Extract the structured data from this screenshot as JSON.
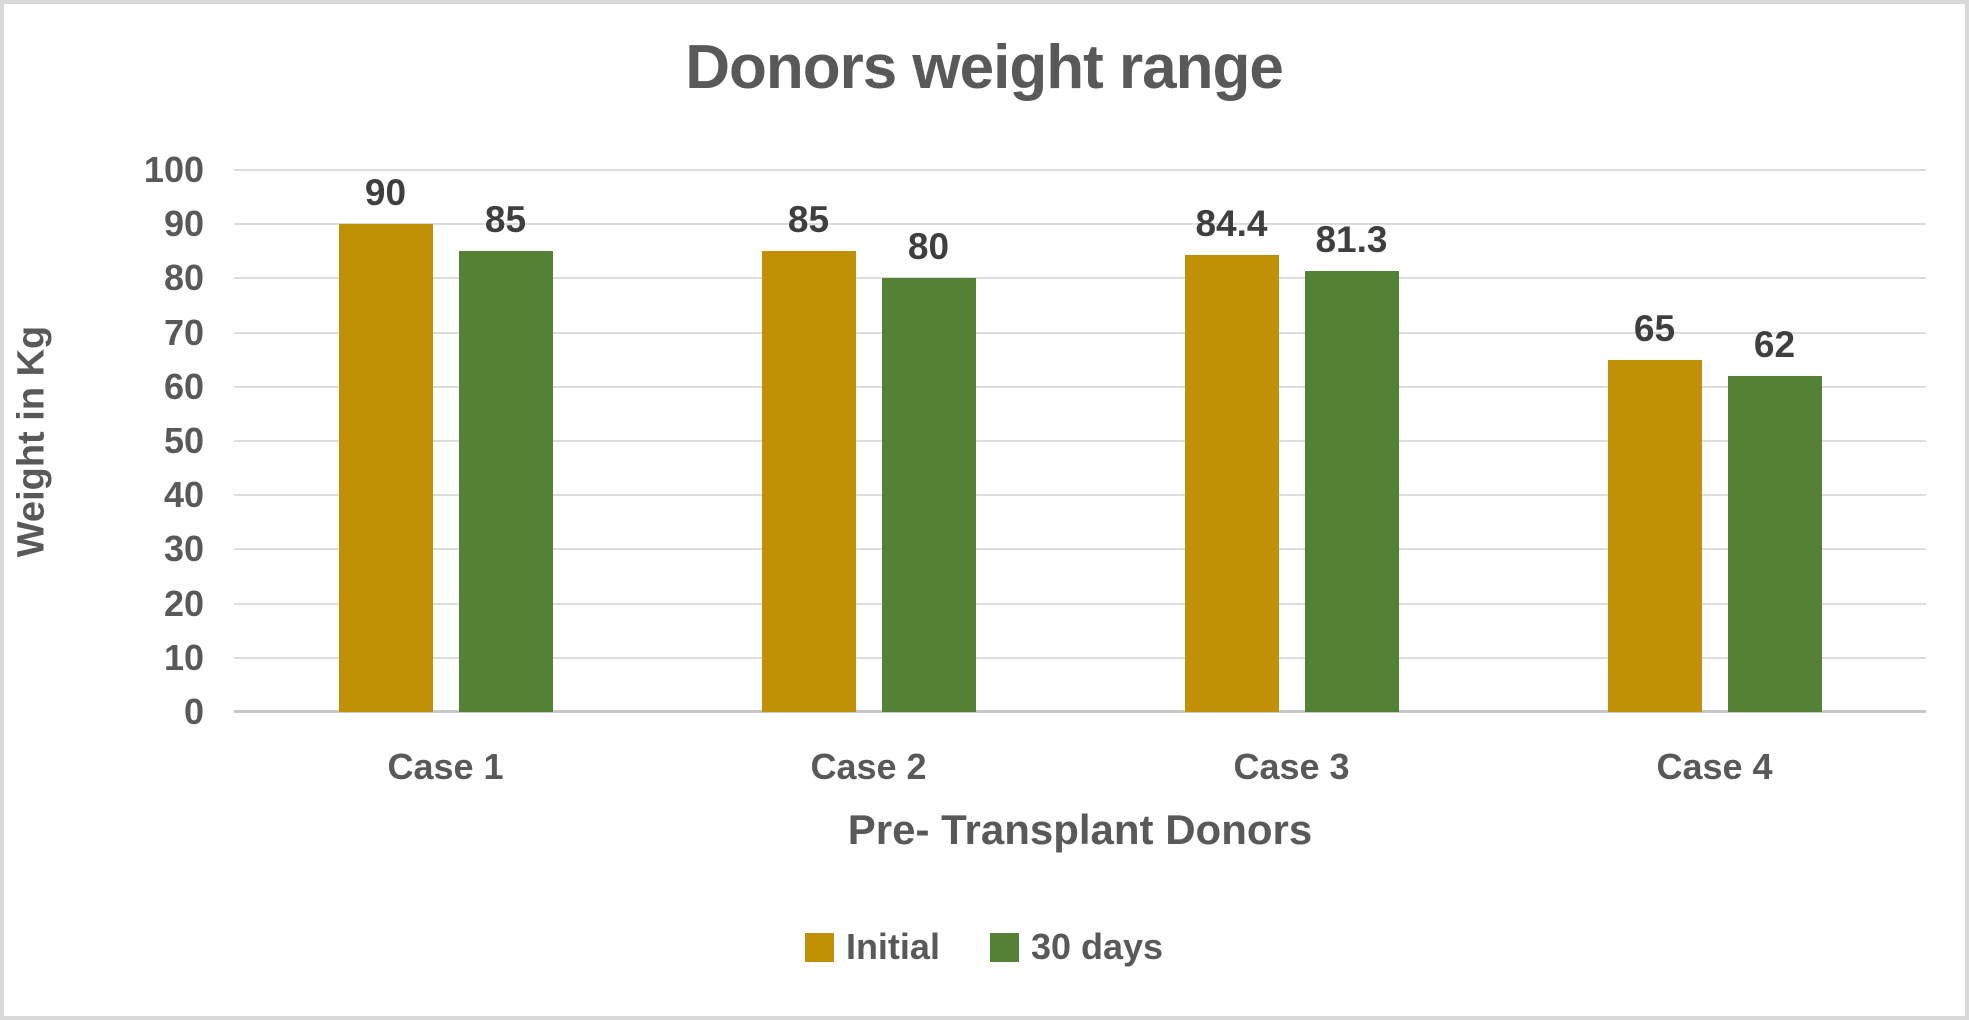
{
  "chart_data": {
    "type": "bar",
    "title": "Donors weight range",
    "categories": [
      "Case 1",
      "Case 2",
      "Case 3",
      "Case 4"
    ],
    "series": [
      {
        "name": "Initial",
        "color": "#C09104",
        "values": [
          90,
          85,
          84.4,
          65
        ]
      },
      {
        "name": "30 days",
        "color": "#548235",
        "values": [
          85,
          80,
          81.3,
          62
        ]
      }
    ],
    "data_labels": [
      "90",
      "85",
      "85",
      "80",
      "84.4",
      "81.3",
      "65",
      "62"
    ],
    "xlabel": "Pre- Transplant Donors",
    "ylabel": "Weight in Kg",
    "ylim": [
      0,
      100
    ],
    "yticks": [
      0,
      10,
      20,
      30,
      40,
      50,
      60,
      70,
      80,
      90,
      100
    ],
    "grid": true,
    "legend_position": "bottom",
    "colors": {
      "title_text": "#595959",
      "axis_text": "#595959",
      "data_label_text": "#3f3f3f",
      "gridline": "#dcdcdc",
      "axis_line": "#c8c8c8",
      "frame_border": "#d9d9d9",
      "background": "#ffffff"
    }
  }
}
